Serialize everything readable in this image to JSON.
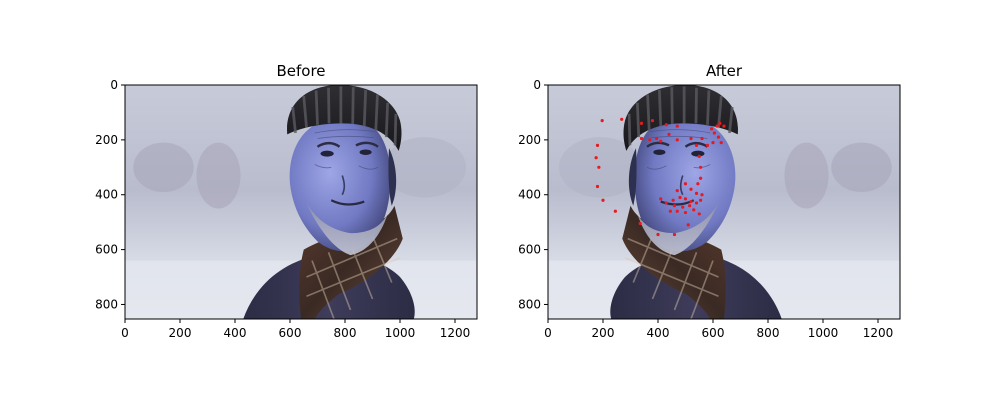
{
  "chart_data": [
    {
      "type": "image",
      "title": "Before",
      "xlabel": "",
      "ylabel": "",
      "xlim": [
        0,
        1280
      ],
      "ylim": [
        853,
        0
      ],
      "xticks": [
        0,
        200,
        400,
        600,
        800,
        1000,
        1200
      ],
      "yticks": [
        0,
        200,
        400,
        600,
        800
      ],
      "image_description_name": "portrait-photo",
      "orientation": "original"
    },
    {
      "type": "scatter",
      "title": "After",
      "xlabel": "",
      "ylabel": "",
      "xlim": [
        0,
        1280
      ],
      "ylim": [
        853,
        0
      ],
      "xticks": [
        0,
        200,
        400,
        600,
        800,
        1000,
        1200
      ],
      "yticks": [
        0,
        200,
        400,
        600,
        800
      ],
      "image_description_name": "portrait-photo",
      "orientation": "mirrored",
      "marker_color": "#e8191f",
      "points": [
        {
          "x": 197,
          "y": 130
        },
        {
          "x": 268,
          "y": 125
        },
        {
          "x": 340,
          "y": 140
        },
        {
          "x": 380,
          "y": 130
        },
        {
          "x": 430,
          "y": 145
        },
        {
          "x": 470,
          "y": 150
        },
        {
          "x": 595,
          "y": 160
        },
        {
          "x": 615,
          "y": 150
        },
        {
          "x": 625,
          "y": 140
        },
        {
          "x": 605,
          "y": 175
        },
        {
          "x": 620,
          "y": 190
        },
        {
          "x": 600,
          "y": 210
        },
        {
          "x": 630,
          "y": 210
        },
        {
          "x": 640,
          "y": 150
        },
        {
          "x": 560,
          "y": 195
        },
        {
          "x": 580,
          "y": 220
        },
        {
          "x": 340,
          "y": 195
        },
        {
          "x": 370,
          "y": 200
        },
        {
          "x": 395,
          "y": 195
        },
        {
          "x": 410,
          "y": 205
        },
        {
          "x": 440,
          "y": 180
        },
        {
          "x": 470,
          "y": 200
        },
        {
          "x": 520,
          "y": 195
        },
        {
          "x": 540,
          "y": 220
        },
        {
          "x": 180,
          "y": 220
        },
        {
          "x": 175,
          "y": 265
        },
        {
          "x": 185,
          "y": 300
        },
        {
          "x": 180,
          "y": 370
        },
        {
          "x": 200,
          "y": 420
        },
        {
          "x": 245,
          "y": 460
        },
        {
          "x": 335,
          "y": 505
        },
        {
          "x": 400,
          "y": 545
        },
        {
          "x": 460,
          "y": 545
        },
        {
          "x": 510,
          "y": 510
        },
        {
          "x": 550,
          "y": 470
        },
        {
          "x": 560,
          "y": 400
        },
        {
          "x": 555,
          "y": 340
        },
        {
          "x": 555,
          "y": 300
        },
        {
          "x": 550,
          "y": 260
        },
        {
          "x": 410,
          "y": 415
        },
        {
          "x": 430,
          "y": 430
        },
        {
          "x": 455,
          "y": 420
        },
        {
          "x": 480,
          "y": 410
        },
        {
          "x": 500,
          "y": 415
        },
        {
          "x": 520,
          "y": 425
        },
        {
          "x": 540,
          "y": 430
        },
        {
          "x": 460,
          "y": 440
        },
        {
          "x": 490,
          "y": 445
        },
        {
          "x": 515,
          "y": 440
        },
        {
          "x": 530,
          "y": 455
        },
        {
          "x": 500,
          "y": 465
        },
        {
          "x": 470,
          "y": 460
        },
        {
          "x": 445,
          "y": 460
        },
        {
          "x": 520,
          "y": 380
        },
        {
          "x": 500,
          "y": 360
        },
        {
          "x": 470,
          "y": 385
        },
        {
          "x": 540,
          "y": 395
        },
        {
          "x": 555,
          "y": 420
        },
        {
          "x": 545,
          "y": 360
        }
      ]
    }
  ]
}
